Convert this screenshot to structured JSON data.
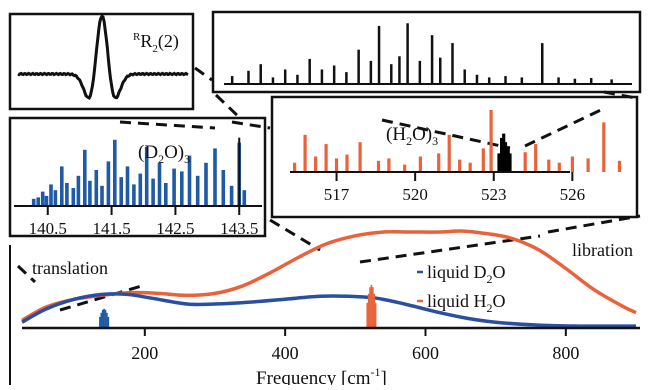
{
  "chart_data": [
    {
      "id": "inset_rr2",
      "type": "line",
      "annotation": "RR2(2)",
      "annotation_parts": {
        "superscript": "R",
        "main": "R",
        "subscript": "2",
        "suffix": "(2)"
      }
    },
    {
      "id": "inset_overview",
      "type": "bar",
      "peaks": [
        {
          "x": 0.02,
          "h": 0.12
        },
        {
          "x": 0.06,
          "h": 0.2
        },
        {
          "x": 0.09,
          "h": 0.3
        },
        {
          "x": 0.12,
          "h": 0.1
        },
        {
          "x": 0.15,
          "h": 0.22
        },
        {
          "x": 0.18,
          "h": 0.14
        },
        {
          "x": 0.21,
          "h": 0.38
        },
        {
          "x": 0.24,
          "h": 0.22
        },
        {
          "x": 0.27,
          "h": 0.28
        },
        {
          "x": 0.3,
          "h": 0.18
        },
        {
          "x": 0.33,
          "h": 0.52
        },
        {
          "x": 0.36,
          "h": 0.35
        },
        {
          "x": 0.38,
          "h": 0.88
        },
        {
          "x": 0.41,
          "h": 0.3
        },
        {
          "x": 0.43,
          "h": 0.42
        },
        {
          "x": 0.45,
          "h": 0.92
        },
        {
          "x": 0.48,
          "h": 0.35
        },
        {
          "x": 0.51,
          "h": 0.74
        },
        {
          "x": 0.53,
          "h": 0.4
        },
        {
          "x": 0.56,
          "h": 0.62
        },
        {
          "x": 0.59,
          "h": 0.22
        },
        {
          "x": 0.62,
          "h": 0.14
        },
        {
          "x": 0.65,
          "h": 0.1
        },
        {
          "x": 0.69,
          "h": 0.12
        },
        {
          "x": 0.73,
          "h": 0.1
        },
        {
          "x": 0.78,
          "h": 0.62
        },
        {
          "x": 0.82,
          "h": 0.1
        },
        {
          "x": 0.86,
          "h": 0.08
        },
        {
          "x": 0.9,
          "h": 0.09
        },
        {
          "x": 0.95,
          "h": 0.07
        }
      ]
    },
    {
      "id": "inset_d2o3",
      "type": "bar",
      "label": "(D2O)3",
      "label_parts": {
        "open": "(D",
        "sub": "2",
        "close": "O)",
        "sub2": "3"
      },
      "xlim": [
        140.3,
        143.7
      ],
      "ticks": [
        140.5,
        141.5,
        142.5,
        143.5
      ],
      "tick_labels": [
        "140.5",
        "141.5",
        "142.5",
        "143.5"
      ],
      "color": "#1f5aa6",
      "peaks": [
        {
          "x": 140.28,
          "h": 0.1
        },
        {
          "x": 140.35,
          "h": 0.12
        },
        {
          "x": 140.42,
          "h": 0.2
        },
        {
          "x": 140.48,
          "h": 0.14
        },
        {
          "x": 140.55,
          "h": 0.3
        },
        {
          "x": 140.62,
          "h": 0.22
        },
        {
          "x": 140.72,
          "h": 0.55
        },
        {
          "x": 140.8,
          "h": 0.32
        },
        {
          "x": 140.9,
          "h": 0.25
        },
        {
          "x": 140.98,
          "h": 0.42
        },
        {
          "x": 141.08,
          "h": 0.78
        },
        {
          "x": 141.16,
          "h": 0.35
        },
        {
          "x": 141.26,
          "h": 0.5
        },
        {
          "x": 141.35,
          "h": 0.28
        },
        {
          "x": 141.45,
          "h": 0.62
        },
        {
          "x": 141.55,
          "h": 0.92
        },
        {
          "x": 141.65,
          "h": 0.4
        },
        {
          "x": 141.75,
          "h": 0.55
        },
        {
          "x": 141.85,
          "h": 0.3
        },
        {
          "x": 141.95,
          "h": 0.45
        },
        {
          "x": 142.05,
          "h": 0.82
        },
        {
          "x": 142.15,
          "h": 0.38
        },
        {
          "x": 142.25,
          "h": 0.6
        },
        {
          "x": 142.35,
          "h": 0.32
        },
        {
          "x": 142.48,
          "h": 0.52
        },
        {
          "x": 142.6,
          "h": 0.48
        },
        {
          "x": 142.72,
          "h": 0.7
        },
        {
          "x": 142.85,
          "h": 0.42
        },
        {
          "x": 142.98,
          "h": 0.6
        },
        {
          "x": 143.12,
          "h": 0.8
        },
        {
          "x": 143.25,
          "h": 0.5
        },
        {
          "x": 143.38,
          "h": 0.28
        },
        {
          "x": 143.5,
          "h": 0.88
        },
        {
          "x": 143.58,
          "h": 0.22
        }
      ],
      "marker_x": 143.5
    },
    {
      "id": "inset_h2o3",
      "type": "bar",
      "label": "(H2O)3",
      "label_parts": {
        "open": "(H",
        "sub": "2",
        "close": "O)",
        "sub2": "3"
      },
      "xlim": [
        515.3,
        528.2
      ],
      "ticks": [
        517,
        520,
        523,
        526
      ],
      "tick_labels": [
        "517",
        "520",
        "523",
        "526"
      ],
      "color": "#e8623a",
      "marker_color": "#000000",
      "peaks": [
        {
          "x": 515.4,
          "h": 0.15
        },
        {
          "x": 515.8,
          "h": 0.6
        },
        {
          "x": 516.2,
          "h": 0.25
        },
        {
          "x": 516.6,
          "h": 0.45
        },
        {
          "x": 517.0,
          "h": 0.22
        },
        {
          "x": 517.4,
          "h": 0.28
        },
        {
          "x": 517.9,
          "h": 0.48
        },
        {
          "x": 518.6,
          "h": 0.18
        },
        {
          "x": 519.0,
          "h": 0.22
        },
        {
          "x": 519.6,
          "h": 0.12
        },
        {
          "x": 520.2,
          "h": 0.25
        },
        {
          "x": 520.9,
          "h": 0.3
        },
        {
          "x": 521.3,
          "h": 0.6
        },
        {
          "x": 521.7,
          "h": 0.2
        },
        {
          "x": 522.1,
          "h": 0.15
        },
        {
          "x": 522.6,
          "h": 0.38
        },
        {
          "x": 522.9,
          "h": 1.0
        },
        {
          "x": 523.3,
          "h": 0.22
        },
        {
          "x": 524.2,
          "h": 0.32
        },
        {
          "x": 524.6,
          "h": 0.45
        },
        {
          "x": 525.1,
          "h": 0.2
        },
        {
          "x": 525.5,
          "h": 0.15
        },
        {
          "x": 526.0,
          "h": 0.25
        },
        {
          "x": 526.6,
          "h": 0.22
        },
        {
          "x": 527.2,
          "h": 0.8
        },
        {
          "x": 527.8,
          "h": 0.18
        }
      ],
      "marker_peaks": [
        {
          "x": 523.2,
          "h": 0.3
        },
        {
          "x": 523.3,
          "h": 0.55
        },
        {
          "x": 523.38,
          "h": 0.62
        },
        {
          "x": 523.45,
          "h": 0.48
        },
        {
          "x": 523.55,
          "h": 0.4
        },
        {
          "x": 523.62,
          "h": 0.3
        }
      ]
    },
    {
      "id": "main_spectrum",
      "type": "line",
      "xlabel": "Frequency [cm-1]",
      "xlabel_parts": {
        "main": "Frequency [cm",
        "sup": "-1",
        "close": "]"
      },
      "xlim": [
        25,
        900
      ],
      "ticks": [
        200,
        400,
        600,
        800
      ],
      "tick_labels": [
        "200",
        "400",
        "600",
        "800"
      ],
      "annotations": [
        "translation",
        "libration"
      ],
      "legend": [
        {
          "name": "liquid D2O",
          "parts": {
            "main": "liquid D",
            "sub": "2",
            "end": "O"
          },
          "color": "#2b4fa0"
        },
        {
          "name": "liquid H2O",
          "parts": {
            "main": "liquid H",
            "sub": "2",
            "end": "O"
          },
          "color": "#e8623a"
        }
      ],
      "series": [
        {
          "name": "liquid H2O",
          "color": "#e8623a",
          "x": [
            25,
            60,
            100,
            150,
            185,
            220,
            260,
            300,
            340,
            380,
            420,
            460,
            500,
            540,
            580,
            620,
            650,
            680,
            720,
            760,
            800,
            840,
            880,
            900
          ],
          "y": [
            0.08,
            0.22,
            0.3,
            0.35,
            0.37,
            0.36,
            0.34,
            0.36,
            0.44,
            0.58,
            0.74,
            0.88,
            0.96,
            1.0,
            1.0,
            1.0,
            1.01,
            0.99,
            0.94,
            0.82,
            0.62,
            0.4,
            0.23,
            0.16
          ]
        },
        {
          "name": "liquid D2O",
          "color": "#2b4fa0",
          "x": [
            25,
            60,
            100,
            140,
            175,
            210,
            260,
            300,
            350,
            400,
            450,
            490,
            530,
            570,
            620,
            660,
            700,
            760,
            820,
            880,
            900
          ],
          "y": [
            0.06,
            0.2,
            0.3,
            0.35,
            0.35,
            0.31,
            0.25,
            0.25,
            0.27,
            0.3,
            0.33,
            0.33,
            0.31,
            0.25,
            0.16,
            0.1,
            0.06,
            0.03,
            0.02,
            0.02,
            0.02
          ]
        }
      ],
      "stick_clusters": [
        {
          "center": 142,
          "color": "#1f5aa6",
          "height": 0.2
        },
        {
          "center": 523,
          "color": "#e8623a",
          "height": 0.45
        }
      ]
    }
  ]
}
